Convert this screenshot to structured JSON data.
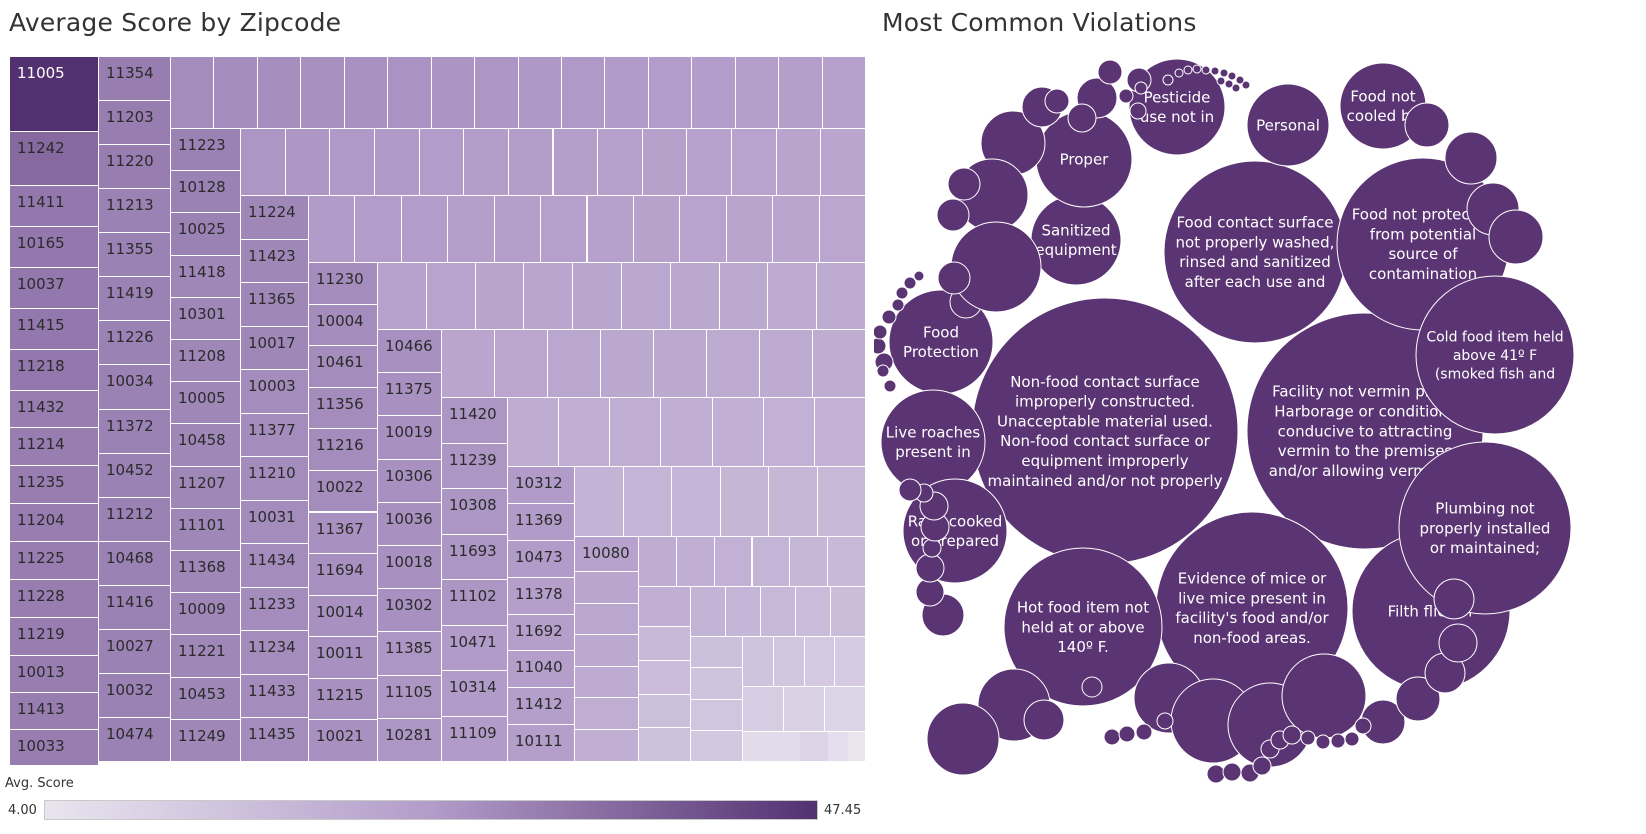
{
  "left_chart": {
    "title": "Average Score by Zipcode"
  },
  "right_chart": {
    "title": "Most Common Violations"
  },
  "legend": {
    "title": "Avg. Score",
    "min_label": "4.00",
    "max_label": "47.45"
  },
  "colors": {
    "light": "#e9e5ef",
    "dark": "#533171",
    "bubble": "#5b3473"
  },
  "chart_data": [
    {
      "type": "treemap",
      "title": "Average Score by Zipcode",
      "value_label": "Avg. Score",
      "color_range": [
        4.0,
        47.45
      ],
      "labeled_cells": [
        {
          "zipcode": "11005",
          "score": 47.45
        },
        {
          "zipcode": "11242",
          "score": 36
        },
        {
          "zipcode": "11411",
          "score": 33
        },
        {
          "zipcode": "10165",
          "score": 33
        },
        {
          "zipcode": "10037",
          "score": 33
        },
        {
          "zipcode": "11415",
          "score": 33
        },
        {
          "zipcode": "11218",
          "score": 33
        },
        {
          "zipcode": "11432",
          "score": 32
        },
        {
          "zipcode": "11214",
          "score": 32
        },
        {
          "zipcode": "11235",
          "score": 32
        },
        {
          "zipcode": "11204",
          "score": 32
        },
        {
          "zipcode": "11225",
          "score": 32
        },
        {
          "zipcode": "11228",
          "score": 32
        },
        {
          "zipcode": "11219",
          "score": 32
        },
        {
          "zipcode": "10013",
          "score": 32
        },
        {
          "zipcode": "11413",
          "score": 32
        },
        {
          "zipcode": "10033",
          "score": 32
        },
        {
          "zipcode": "11354",
          "score": 32
        },
        {
          "zipcode": "11203",
          "score": 32
        },
        {
          "zipcode": "11220",
          "score": 32
        },
        {
          "zipcode": "11213",
          "score": 31
        },
        {
          "zipcode": "11355",
          "score": 31
        },
        {
          "zipcode": "11419",
          "score": 31
        },
        {
          "zipcode": "11226",
          "score": 31
        },
        {
          "zipcode": "10034",
          "score": 31
        },
        {
          "zipcode": "11372",
          "score": 31
        },
        {
          "zipcode": "10452",
          "score": 31
        },
        {
          "zipcode": "11212",
          "score": 31
        },
        {
          "zipcode": "10468",
          "score": 31
        },
        {
          "zipcode": "11416",
          "score": 31
        },
        {
          "zipcode": "10027",
          "score": 31
        },
        {
          "zipcode": "10032",
          "score": 31
        },
        {
          "zipcode": "10474",
          "score": 31
        },
        {
          "zipcode": "11223",
          "score": 31
        },
        {
          "zipcode": "10128",
          "score": 31
        },
        {
          "zipcode": "10025",
          "score": 31
        },
        {
          "zipcode": "11418",
          "score": 30
        },
        {
          "zipcode": "10301",
          "score": 30
        },
        {
          "zipcode": "11208",
          "score": 30
        },
        {
          "zipcode": "10005",
          "score": 30
        },
        {
          "zipcode": "10458",
          "score": 30
        },
        {
          "zipcode": "11207",
          "score": 30
        },
        {
          "zipcode": "11101",
          "score": 30
        },
        {
          "zipcode": "11368",
          "score": 30
        },
        {
          "zipcode": "10009",
          "score": 30
        },
        {
          "zipcode": "11221",
          "score": 30
        },
        {
          "zipcode": "10453",
          "score": 30
        },
        {
          "zipcode": "11249",
          "score": 30
        },
        {
          "zipcode": "11224",
          "score": 30
        },
        {
          "zipcode": "11423",
          "score": 30
        },
        {
          "zipcode": "11365",
          "score": 30
        },
        {
          "zipcode": "10017",
          "score": 30
        },
        {
          "zipcode": "10003",
          "score": 29
        },
        {
          "zipcode": "11377",
          "score": 29
        },
        {
          "zipcode": "11210",
          "score": 29
        },
        {
          "zipcode": "10031",
          "score": 29
        },
        {
          "zipcode": "11434",
          "score": 29
        },
        {
          "zipcode": "11233",
          "score": 29
        },
        {
          "zipcode": "11234",
          "score": 29
        },
        {
          "zipcode": "11433",
          "score": 29
        },
        {
          "zipcode": "11435",
          "score": 29
        },
        {
          "zipcode": "11230",
          "score": 29
        },
        {
          "zipcode": "10004",
          "score": 29
        },
        {
          "zipcode": "10461",
          "score": 29
        },
        {
          "zipcode": "11356",
          "score": 29
        },
        {
          "zipcode": "11216",
          "score": 29
        },
        {
          "zipcode": "10022",
          "score": 29
        },
        {
          "zipcode": "11367",
          "score": 28
        },
        {
          "zipcode": "11694",
          "score": 28
        },
        {
          "zipcode": "10014",
          "score": 28
        },
        {
          "zipcode": "10011",
          "score": 28
        },
        {
          "zipcode": "11215",
          "score": 28
        },
        {
          "zipcode": "10021",
          "score": 28
        },
        {
          "zipcode": "10466",
          "score": 28
        },
        {
          "zipcode": "11375",
          "score": 28
        },
        {
          "zipcode": "10019",
          "score": 28
        },
        {
          "zipcode": "10306",
          "score": 28
        },
        {
          "zipcode": "10036",
          "score": 28
        },
        {
          "zipcode": "10018",
          "score": 28
        },
        {
          "zipcode": "10302",
          "score": 28
        },
        {
          "zipcode": "11385",
          "score": 27
        },
        {
          "zipcode": "11105",
          "score": 27
        },
        {
          "zipcode": "10281",
          "score": 27
        },
        {
          "zipcode": "11420",
          "score": 27
        },
        {
          "zipcode": "11239",
          "score": 27
        },
        {
          "zipcode": "10308",
          "score": 27
        },
        {
          "zipcode": "11693",
          "score": 27
        },
        {
          "zipcode": "11102",
          "score": 27
        },
        {
          "zipcode": "10471",
          "score": 26
        },
        {
          "zipcode": "10314",
          "score": 26
        },
        {
          "zipcode": "11109",
          "score": 26
        },
        {
          "zipcode": "10312",
          "score": 26
        },
        {
          "zipcode": "11369",
          "score": 26
        },
        {
          "zipcode": "10473",
          "score": 26
        },
        {
          "zipcode": "11378",
          "score": 25
        },
        {
          "zipcode": "11692",
          "score": 25
        },
        {
          "zipcode": "11040",
          "score": 25
        },
        {
          "zipcode": "11412",
          "score": 25
        },
        {
          "zipcode": "10111",
          "score": 25
        },
        {
          "zipcode": "10080",
          "score": 24
        }
      ]
    },
    {
      "type": "packed-bubble",
      "title": "Most Common Violations",
      "labeled_bubbles": [
        {
          "lines": [
            "Non-food contact surface",
            "improperly constructed.",
            "Unacceptable material used.",
            "Non-food contact surface or",
            "equipment improperly",
            "maintained and/or not properly"
          ]
        },
        {
          "lines": [
            "Facility not vermin proof.",
            "Harborage or conditions",
            "conducive to attracting",
            "vermin to the premises",
            "and/or allowing vermin to"
          ]
        },
        {
          "lines": [
            "Food contact surface",
            "not properly washed,",
            "rinsed and sanitized",
            "after each use and"
          ]
        },
        {
          "lines": [
            "Evidence of mice or",
            "live mice present in",
            "facility's food and/or",
            "non-food areas."
          ]
        },
        {
          "lines": [
            "Food not protected",
            "from potential",
            "source of",
            "contamination"
          ]
        },
        {
          "lines": [
            "Filth flies or"
          ]
        },
        {
          "lines": [
            "Cold food item held",
            "above 41º F",
            "(smoked fish and"
          ]
        },
        {
          "lines": [
            "Hot food item not",
            "held at or above",
            "140º F."
          ]
        },
        {
          "lines": [
            "Plumbing not",
            "properly installed",
            "or maintained;"
          ]
        },
        {
          "lines": [
            "Sanitized",
            "equipment"
          ]
        },
        {
          "lines": [
            "Proper"
          ]
        },
        {
          "lines": [
            "Food",
            "Protection"
          ]
        },
        {
          "lines": [
            "Live roaches",
            "present in"
          ]
        },
        {
          "lines": [
            "Raw, cooked",
            "or prepared"
          ]
        },
        {
          "lines": [
            "Pesticide",
            "use not in"
          ]
        },
        {
          "lines": [
            "Personal"
          ]
        },
        {
          "lines": [
            "Food not",
            "cooled by"
          ]
        }
      ]
    }
  ]
}
